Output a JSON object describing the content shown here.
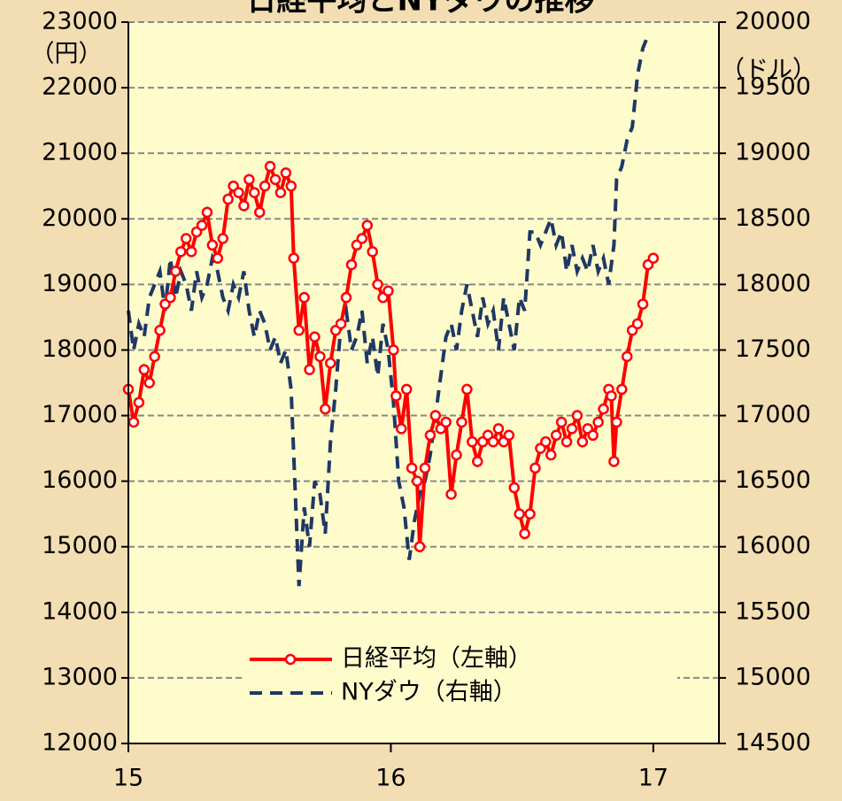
{
  "chart_data": {
    "type": "line",
    "title": "日経平均とNYダウの推移",
    "y_label": "（円）",
    "y2_label": "（ドル）",
    "xlim": [
      15,
      17.25
    ],
    "xticks": [
      15,
      16,
      17
    ],
    "ylim": [
      12000,
      23000
    ],
    "yticks": [
      12000,
      13000,
      14000,
      15000,
      16000,
      17000,
      18000,
      19000,
      20000,
      21000,
      22000,
      23000
    ],
    "y2lim": [
      14500,
      20000
    ],
    "y2ticks": [
      14500,
      15000,
      15500,
      16000,
      16500,
      17000,
      17500,
      18000,
      18500,
      19000,
      19500,
      20000
    ],
    "grid": true,
    "legend": "bottom",
    "series": [
      {
        "name": "日経平均（左軸）",
        "color": "#ff0000",
        "marker": "circle",
        "x": [
          15.0,
          15.02,
          15.04,
          15.06,
          15.08,
          15.1,
          15.12,
          15.14,
          15.16,
          15.18,
          15.2,
          15.22,
          15.24,
          15.26,
          15.28,
          15.3,
          15.32,
          15.34,
          15.36,
          15.38,
          15.4,
          15.42,
          15.44,
          15.46,
          15.48,
          15.5,
          15.52,
          15.54,
          15.56,
          15.58,
          15.6,
          15.62,
          15.63,
          15.65,
          15.67,
          15.69,
          15.71,
          15.73,
          15.75,
          15.77,
          15.79,
          15.81,
          15.83,
          15.85,
          15.87,
          15.89,
          15.91,
          15.93,
          15.95,
          15.97,
          15.99,
          16.01,
          16.02,
          16.04,
          16.06,
          16.08,
          16.1,
          16.11,
          16.13,
          16.15,
          16.17,
          16.19,
          16.21,
          16.23,
          16.25,
          16.27,
          16.29,
          16.31,
          16.33,
          16.35,
          16.37,
          16.39,
          16.41,
          16.43,
          16.45,
          16.47,
          16.49,
          16.51,
          16.53,
          16.55,
          16.57,
          16.59,
          16.61,
          16.63,
          16.65,
          16.67,
          16.69,
          16.71,
          16.73,
          16.75,
          16.77,
          16.79,
          16.81,
          16.83,
          16.84,
          16.85,
          16.86,
          16.88,
          16.9,
          16.92,
          16.94,
          16.96,
          16.98,
          17.0
        ],
        "values": [
          17400,
          16900,
          17200,
          17700,
          17500,
          17900,
          18300,
          18700,
          18800,
          19200,
          19500,
          19700,
          19500,
          19800,
          19900,
          20100,
          19600,
          19400,
          19700,
          20300,
          20500,
          20400,
          20200,
          20600,
          20400,
          20100,
          20500,
          20800,
          20600,
          20400,
          20700,
          20500,
          19400,
          18300,
          18800,
          17700,
          18200,
          17900,
          17100,
          17800,
          18300,
          18400,
          18800,
          19300,
          19600,
          19700,
          19900,
          19500,
          19000,
          18800,
          18900,
          18000,
          17300,
          16800,
          17400,
          16200,
          16000,
          15000,
          16200,
          16700,
          17000,
          16800,
          16900,
          15800,
          16400,
          16900,
          17400,
          16600,
          16300,
          16600,
          16700,
          16600,
          16800,
          16600,
          16700,
          15900,
          15500,
          15200,
          15500,
          16200,
          16500,
          16600,
          16400,
          16700,
          16900,
          16600,
          16800,
          17000,
          16600,
          16800,
          16700,
          16900,
          17100,
          17400,
          17300,
          16300,
          16900,
          17400,
          17900,
          18300,
          18400,
          18700,
          19300,
          19400
        ]
      },
      {
        "name": "NYダウ（右軸）",
        "color": "#1f3864",
        "dash": true,
        "axis": "y2",
        "x": [
          15.0,
          15.02,
          15.04,
          15.06,
          15.08,
          15.1,
          15.12,
          15.14,
          15.16,
          15.18,
          15.2,
          15.22,
          15.24,
          15.26,
          15.28,
          15.3,
          15.32,
          15.34,
          15.36,
          15.38,
          15.4,
          15.42,
          15.44,
          15.46,
          15.48,
          15.5,
          15.52,
          15.54,
          15.56,
          15.58,
          15.6,
          15.62,
          15.64,
          15.65,
          15.67,
          15.69,
          15.71,
          15.73,
          15.75,
          15.77,
          15.79,
          15.81,
          15.83,
          15.85,
          15.87,
          15.89,
          15.91,
          15.93,
          15.95,
          15.97,
          15.99,
          16.01,
          16.03,
          16.05,
          16.07,
          16.09,
          16.11,
          16.13,
          16.15,
          16.17,
          16.19,
          16.21,
          16.23,
          16.25,
          16.27,
          16.29,
          16.31,
          16.33,
          16.35,
          16.37,
          16.39,
          16.41,
          16.43,
          16.45,
          16.47,
          16.49,
          16.51,
          16.53,
          16.55,
          16.57,
          16.59,
          16.61,
          16.63,
          16.65,
          16.67,
          16.69,
          16.71,
          16.73,
          16.75,
          16.77,
          16.79,
          16.81,
          16.83,
          16.85,
          16.86,
          16.88,
          16.9,
          16.92,
          16.94,
          16.96,
          16.98
        ],
        "values": [
          17800,
          17500,
          17700,
          17600,
          17900,
          18000,
          18100,
          17800,
          18200,
          17900,
          18100,
          18000,
          17800,
          18100,
          17900,
          18000,
          18200,
          18100,
          17900,
          17800,
          18000,
          17900,
          18100,
          17800,
          17600,
          17800,
          17700,
          17500,
          17600,
          17400,
          17500,
          17200,
          16200,
          15700,
          16300,
          16000,
          16500,
          16400,
          16100,
          16800,
          17200,
          17700,
          17800,
          17500,
          17600,
          17800,
          17400,
          17600,
          17300,
          17700,
          17500,
          17100,
          16500,
          16300,
          15900,
          16200,
          16400,
          16500,
          16700,
          17000,
          17300,
          17600,
          17700,
          17500,
          17800,
          18000,
          17800,
          17600,
          17900,
          17700,
          17800,
          17500,
          17900,
          17700,
          17500,
          17900,
          17800,
          18400,
          18400,
          18300,
          18400,
          18500,
          18300,
          18400,
          18100,
          18300,
          18100,
          18200,
          18100,
          18300,
          18100,
          18200,
          18000,
          18300,
          18800,
          18900,
          19100,
          19200,
          19600,
          19800,
          19900
        ]
      }
    ]
  }
}
